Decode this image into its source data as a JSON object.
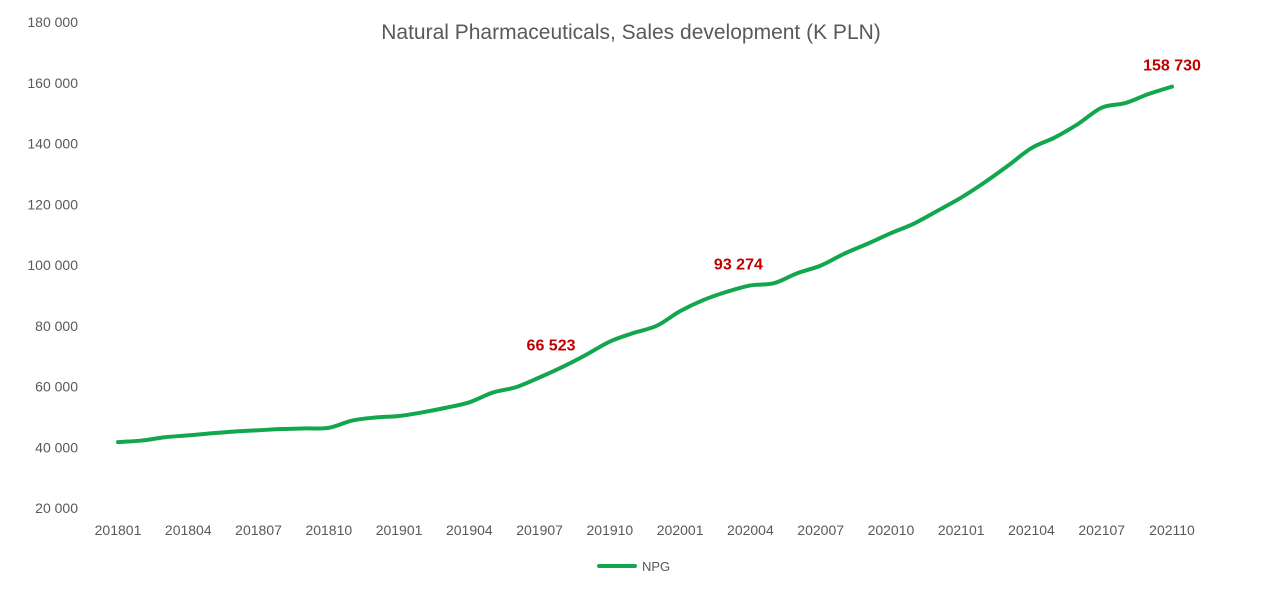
{
  "chart_data": {
    "type": "line",
    "title": "Natural Pharmaceuticals, Sales development (K PLN)",
    "xlabel": "",
    "ylabel": "",
    "ylim": [
      20000,
      180000
    ],
    "yticks": [
      20000,
      40000,
      60000,
      80000,
      100000,
      120000,
      140000,
      160000,
      180000
    ],
    "ytick_labels": [
      "20 000",
      "40 000",
      "60 000",
      "80 000",
      "100 000",
      "120 000",
      "140 000",
      "160 000",
      "180 000"
    ],
    "x": [
      "201801",
      "201802",
      "201803",
      "201804",
      "201805",
      "201806",
      "201807",
      "201808",
      "201809",
      "201810",
      "201811",
      "201812",
      "201901",
      "201902",
      "201903",
      "201904",
      "201905",
      "201906",
      "201907",
      "201908",
      "201909",
      "201910",
      "201911",
      "201912",
      "202001",
      "202002",
      "202003",
      "202004",
      "202005",
      "202006",
      "202007",
      "202008",
      "202009",
      "202010",
      "202011",
      "202012",
      "202101",
      "202102",
      "202103",
      "202104",
      "202105",
      "202106",
      "202107",
      "202108",
      "202109",
      "202110"
    ],
    "xtick_labels": [
      "201801",
      "201804",
      "201807",
      "201810",
      "201901",
      "201904",
      "201907",
      "201910",
      "202001",
      "202004",
      "202007",
      "202010",
      "202101",
      "202104",
      "202107",
      "202110"
    ],
    "grid": false,
    "legend_position": "bottom",
    "series": [
      {
        "name": "NPG",
        "color": "#12a64e",
        "values": [
          41700,
          42200,
          43300,
          43900,
          44600,
          45200,
          45600,
          46000,
          46200,
          46400,
          48800,
          49800,
          50300,
          51500,
          53000,
          54800,
          58000,
          59800,
          63000,
          66523,
          70500,
          74800,
          77600,
          80000,
          84800,
          88500,
          91200,
          93274,
          94000,
          97300,
          99800,
          103700,
          107000,
          110500,
          113700,
          117900,
          122200,
          127200,
          132700,
          138500,
          142000,
          146500,
          151800,
          153300,
          156300,
          158730
        ]
      }
    ],
    "annotations": [
      {
        "x": "201908",
        "value": 66523,
        "text": "66 523",
        "color": "#c00000"
      },
      {
        "x": "202004",
        "value": 93274,
        "text": "93 274",
        "color": "#c00000"
      },
      {
        "x": "202110",
        "value": 158730,
        "text": "158 730",
        "color": "#c00000"
      }
    ]
  }
}
